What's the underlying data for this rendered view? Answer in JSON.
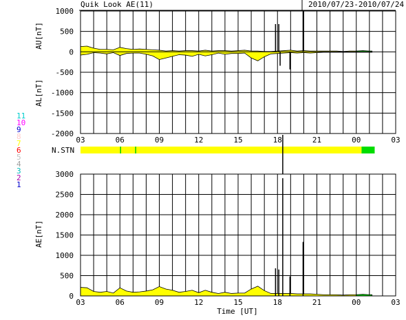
{
  "header": {
    "title": "Quik Look AE(11)",
    "date_range": "2010/07/23-2010/07/24"
  },
  "colors": {
    "fill": "#ffff00",
    "fill_recent": "#00dd00",
    "station_bar": "#ffff00",
    "station_mark": "#00cc00",
    "axes": "#000000",
    "grid": "#000000"
  },
  "legend": {
    "items": [
      {
        "label": "11",
        "color": "#00cccc"
      },
      {
        "label": "10",
        "color": "#ff00ff"
      },
      {
        "label": "9",
        "color": "#0000cc"
      },
      {
        "label": "8",
        "color": "#ffcccc"
      },
      {
        "label": "7",
        "color": "#ffff00"
      },
      {
        "label": "6",
        "color": "#ff0000"
      },
      {
        "label": "5",
        "color": "#c0c0c0"
      },
      {
        "label": "4",
        "color": "#a0a0a0"
      },
      {
        "label": "3",
        "color": "#00bbbb"
      },
      {
        "label": "2",
        "color": "#aa00aa"
      },
      {
        "label": "1",
        "color": "#0000cc"
      }
    ]
  },
  "station": {
    "label": "N.STN"
  },
  "chart_data": [
    {
      "type": "area",
      "panel": "AU/AL",
      "ylabel_top": "AU[nT]",
      "ylabel_bottom": "AL[nT]",
      "ylim": [
        -2000,
        1000
      ],
      "yticks": [
        "1000",
        "500",
        "0",
        "-500",
        "-1000",
        "-1500",
        "-2000"
      ],
      "x_unit": "UT hour",
      "xlim": [
        3,
        27
      ],
      "xticks": [
        "03",
        "06",
        "09",
        "12",
        "15",
        "18",
        "21",
        "00",
        "03"
      ],
      "grid": true,
      "x": [
        3.0,
        3.5,
        4.0,
        4.5,
        5.0,
        5.5,
        6.0,
        6.5,
        7.0,
        7.5,
        8.0,
        8.5,
        9.0,
        9.5,
        10.0,
        10.5,
        11.0,
        11.5,
        12.0,
        12.5,
        13.0,
        13.5,
        14.0,
        14.5,
        15.0,
        15.5,
        16.0,
        16.5,
        17.0,
        17.5,
        18.0,
        18.5,
        19.0,
        19.5,
        20.0,
        20.5,
        21.0,
        21.5,
        22.0,
        22.5,
        23.0,
        23.5,
        24.0,
        24.5,
        25.0,
        25.2
      ],
      "series": [
        {
          "name": "AU",
          "values": [
            130,
            140,
            90,
            60,
            60,
            50,
            110,
            80,
            60,
            70,
            60,
            50,
            40,
            20,
            30,
            20,
            30,
            30,
            20,
            40,
            20,
            30,
            30,
            20,
            30,
            40,
            20,
            20,
            10,
            10,
            20,
            30,
            40,
            20,
            30,
            20,
            20,
            20,
            20,
            20,
            10,
            20,
            20,
            30,
            20,
            20
          ]
        },
        {
          "name": "AL",
          "values": [
            -80,
            -60,
            -20,
            -30,
            -50,
            -20,
            -90,
            -40,
            -30,
            -30,
            -60,
            -100,
            -190,
            -150,
            -110,
            -70,
            -80,
            -110,
            -60,
            -100,
            -70,
            -30,
            -60,
            -40,
            -40,
            -30,
            -150,
            -220,
            -120,
            -50,
            -40,
            -30,
            -20,
            -30,
            -20,
            -30,
            -20,
            -10,
            -10,
            -10,
            -10,
            -10,
            -10,
            -10,
            -10,
            -10
          ]
        }
      ],
      "spikes": [
        {
          "x": 17.85,
          "y": 680
        },
        {
          "x": 18.1,
          "y": 680
        },
        {
          "x": 18.2,
          "y": -340
        },
        {
          "x": 18.95,
          "y": -430
        },
        {
          "x": 19.95,
          "y": 1000
        }
      ]
    },
    {
      "type": "area",
      "panel": "AE",
      "ylabel": "AE[nT]",
      "xlabel": "Time [UT]",
      "ylim": [
        0,
        3000
      ],
      "yticks": [
        "3000",
        "2500",
        "2000",
        "1500",
        "1000",
        "500",
        "0"
      ],
      "x_unit": "UT hour",
      "xlim": [
        3,
        27
      ],
      "xticks": [
        "03",
        "06",
        "09",
        "12",
        "15",
        "18",
        "21",
        "00",
        "03"
      ],
      "grid": true,
      "x": [
        3.0,
        3.5,
        4.0,
        4.5,
        5.0,
        5.5,
        6.0,
        6.5,
        7.0,
        7.5,
        8.0,
        8.5,
        9.0,
        9.5,
        10.0,
        10.5,
        11.0,
        11.5,
        12.0,
        12.5,
        13.0,
        13.5,
        14.0,
        14.5,
        15.0,
        15.5,
        16.0,
        16.5,
        17.0,
        17.5,
        18.0,
        18.5,
        19.0,
        19.5,
        20.0,
        20.5,
        21.0,
        21.5,
        22.0,
        22.5,
        23.0,
        23.5,
        24.0,
        24.5,
        25.0,
        25.2
      ],
      "values": [
        210,
        200,
        110,
        90,
        110,
        70,
        200,
        120,
        90,
        100,
        120,
        150,
        230,
        170,
        140,
        90,
        110,
        140,
        80,
        140,
        90,
        60,
        90,
        60,
        70,
        70,
        170,
        240,
        130,
        60,
        60,
        60,
        60,
        50,
        50,
        50,
        40,
        30,
        30,
        30,
        20,
        30,
        30,
        40,
        30,
        30
      ],
      "spikes": [
        {
          "x": 17.85,
          "y": 680
        },
        {
          "x": 18.1,
          "y": 650
        },
        {
          "x": 18.4,
          "y": 2900
        },
        {
          "x": 18.95,
          "y": 480
        },
        {
          "x": 19.95,
          "y": 1330
        }
      ]
    }
  ]
}
